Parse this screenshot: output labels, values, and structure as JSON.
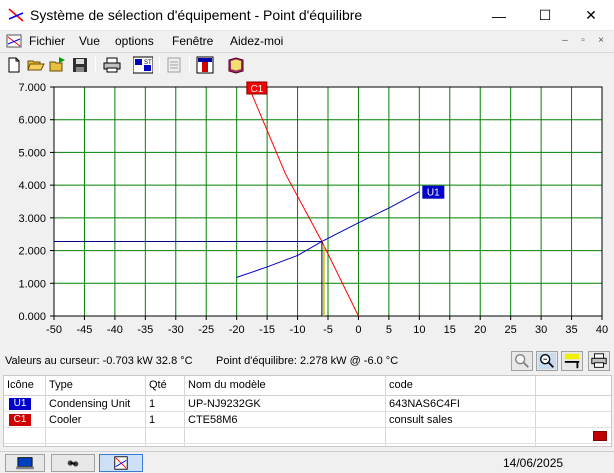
{
  "window": {
    "title": "Système de sélection d'équipement - Point d'équilibre",
    "minimize": "—",
    "maximize": "☐",
    "close": "✕"
  },
  "menu": {
    "items": [
      "Fichier",
      "Vue",
      "options",
      "Fenêtre",
      "Aidez-moi"
    ],
    "mdi_minimize": "–",
    "mdi_restore": "▫",
    "mdi_close": "×"
  },
  "toolbar": {
    "icons": [
      "new-file-icon",
      "open-folder-icon",
      "open-recent-icon",
      "save-icon",
      "print-icon",
      "si-units-icon",
      "report-icon",
      "chart-icon",
      "book-icon"
    ]
  },
  "chart_data": {
    "type": "line",
    "x_axis": {
      "min": -50,
      "max": 40,
      "ticks": [
        "-50",
        "-45",
        "-40",
        "-35",
        "-30",
        "-25",
        "-20",
        "-15",
        "-10",
        "-5",
        "0",
        "5",
        "10",
        "15",
        "20",
        "25",
        "30",
        "35",
        "40"
      ]
    },
    "y_axis": {
      "min": 0,
      "max": 7,
      "ticks": [
        "0.000",
        "1.000",
        "2.000",
        "3.000",
        "4.000",
        "5.000",
        "6.000",
        "7.000"
      ]
    },
    "grid": true,
    "grid_color": "#008000",
    "series": [
      {
        "name": "U1",
        "color": "#0000c8",
        "points": [
          [
            -20,
            1.18
          ],
          [
            -15,
            1.5
          ],
          [
            -10,
            1.85
          ],
          [
            -6,
            2.278
          ],
          [
            0,
            2.85
          ],
          [
            5,
            3.3
          ],
          [
            10,
            3.8
          ]
        ]
      },
      {
        "name": "C1",
        "color": "#ff0000",
        "points": [
          [
            -18,
            7.0
          ],
          [
            -12,
            4.35
          ],
          [
            -6,
            2.278
          ],
          [
            0,
            0.0
          ]
        ]
      }
    ],
    "cursor": {
      "x": -6.0,
      "y": 2.278,
      "line_color": "#000080"
    },
    "equilibrium_marker_color": "#c0c000"
  },
  "status": {
    "cursor_values": "Valeurs au curseur: -0.703 kW 32.8 °C",
    "equilibrium": "Point d'équilibre: 2.278 kW @ -6.0 °C"
  },
  "table": {
    "headers": [
      "Icône",
      "Type",
      "Qté",
      "Nom du modèle",
      "code"
    ],
    "rows": [
      {
        "icon": "U1",
        "icon_color": "#0000c8",
        "type": "Condensing Unit",
        "qty": "1",
        "model": "UP-NJ9232GK",
        "code": "643NAS6C4FI"
      },
      {
        "icon": "C1",
        "icon_color": "#d00000",
        "type": "Cooler",
        "qty": "1",
        "model": "CTE58M6",
        "code": "consult sales"
      }
    ]
  },
  "bottom": {
    "date": "14/06/2025"
  }
}
